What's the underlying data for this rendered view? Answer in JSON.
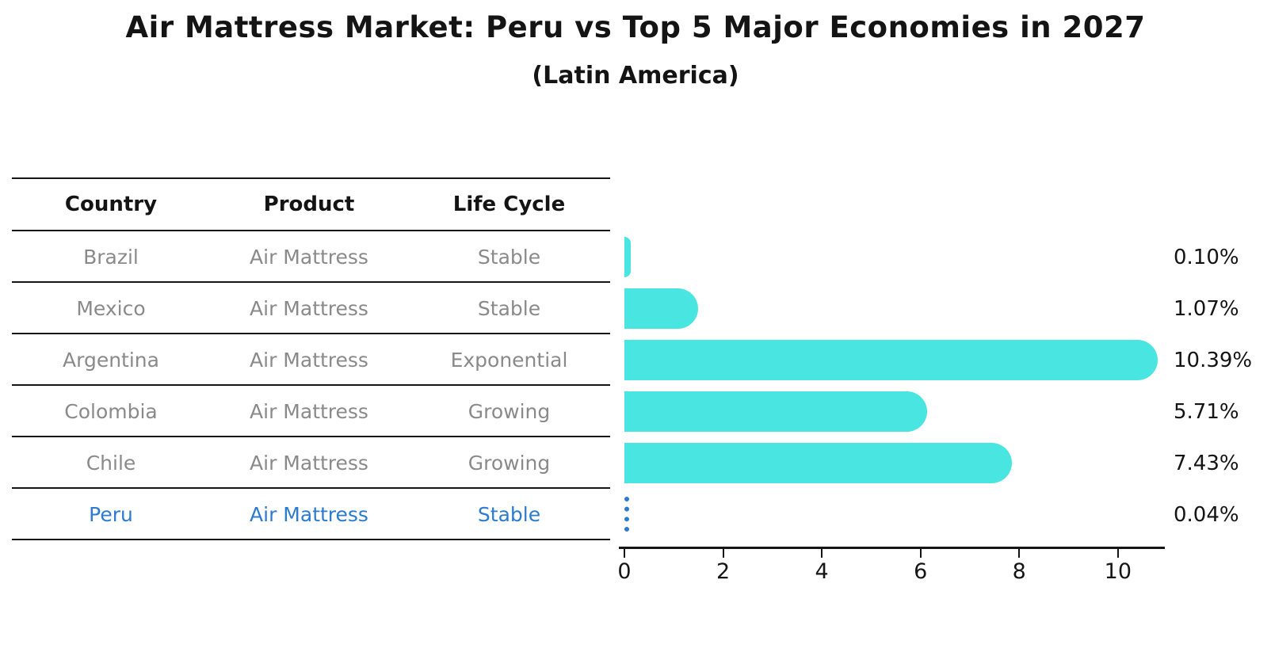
{
  "title": "Air Mattress Market: Peru vs Top 5 Major Economies in 2027",
  "subtitle": "(Latin America)",
  "table": {
    "headers": [
      "Country",
      "Product",
      "Life Cycle"
    ],
    "rows": [
      {
        "country": "Brazil",
        "product": "Air Mattress",
        "life_cycle": "Stable",
        "highlighted": false
      },
      {
        "country": "Mexico",
        "product": "Air Mattress",
        "life_cycle": "Stable",
        "highlighted": false
      },
      {
        "country": "Argentina",
        "product": "Air Mattress",
        "life_cycle": "Exponential",
        "highlighted": false
      },
      {
        "country": "Colombia",
        "product": "Air Mattress",
        "life_cycle": "Growing",
        "highlighted": false
      },
      {
        "country": "Chile",
        "product": "Air Mattress",
        "life_cycle": "Growing",
        "highlighted": false
      },
      {
        "country": "Peru",
        "product": "Air Mattress",
        "life_cycle": "Stable",
        "highlighted": true
      }
    ]
  },
  "chart_data": {
    "type": "bar",
    "orientation": "horizontal",
    "title": "Air Mattress Market: Peru vs Top 5 Major Economies in 2027 (Latin America)",
    "categories": [
      "Brazil",
      "Mexico",
      "Argentina",
      "Colombia",
      "Chile",
      "Peru"
    ],
    "values": [
      0.1,
      1.07,
      10.39,
      5.71,
      7.43,
      0.04
    ],
    "value_labels": [
      "0.10%",
      "1.07%",
      "10.39%",
      "5.71%",
      "7.43%",
      "0.04%"
    ],
    "x_ticks": [
      0,
      2,
      4,
      6,
      8,
      10
    ],
    "xlim": [
      0,
      10.95
    ],
    "grid": false,
    "legend": "none",
    "bar_color": "#49E5E0",
    "highlight_color": "#2B7BD0",
    "highlight_index": 5,
    "highlight_style": "dotted-blue"
  },
  "colors": {
    "bar": "#49E5E0",
    "highlight": "#2B7BD0",
    "muted_text": "#8a8a8a",
    "ink": "#141414"
  }
}
